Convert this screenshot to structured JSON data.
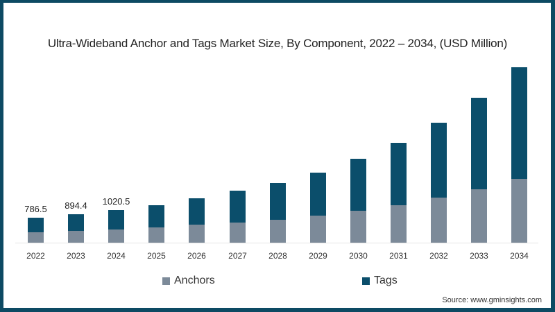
{
  "title": "Ultra-Wideband Anchor and Tags Market Size, By Component, 2022 – 2034, (USD Million)",
  "source": "Source: www.gminsights.com",
  "colors": {
    "anchors": "#7c8a99",
    "tags": "#0b4e6b",
    "border": "#0d4a63"
  },
  "legend": [
    {
      "label": "Anchors",
      "color": "#7c8a99"
    },
    {
      "label": "Tags",
      "color": "#0b4e6b"
    }
  ],
  "chart_data": {
    "type": "bar",
    "stacked": true,
    "title": "Ultra-Wideband Anchor and Tags Market Size, By Component, 2022 – 2034, (USD Million)",
    "xlabel": "",
    "ylabel": "USD Million",
    "categories": [
      "2022",
      "2023",
      "2024",
      "2025",
      "2026",
      "2027",
      "2028",
      "2029",
      "2030",
      "2031",
      "2032",
      "2033",
      "2034"
    ],
    "series": [
      {
        "name": "Anchors",
        "values": [
          328,
          372,
          415,
          480,
          560,
          640,
          730,
          850,
          1000,
          1180,
          1420,
          1690,
          2010
        ]
      },
      {
        "name": "Tags",
        "values": [
          458.5,
          522.4,
          605.5,
          700,
          830,
          1000,
          1140,
          1360,
          1640,
          1970,
          2360,
          2870,
          3510
        ]
      }
    ],
    "totals": [
      786.5,
      894.4,
      1020.5,
      1180,
      1390,
      1640,
      1870,
      2210,
      2640,
      3150,
      3780,
      4560,
      5520
    ],
    "data_labels": {
      "2022": "786.5",
      "2023": "894.4",
      "2024": "1020.5"
    },
    "legend_position": "bottom",
    "grid": false
  }
}
